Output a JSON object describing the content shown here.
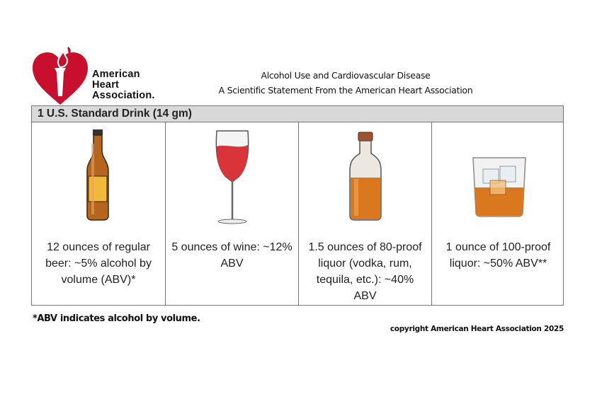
{
  "logo": {
    "lines": [
      "American",
      "Heart",
      "Association."
    ]
  },
  "header": {
    "title": "Alcohol Use and Cardiovascular Disease",
    "subtitle": "A Scientific Statement From the American Heart Association"
  },
  "table": {
    "heading": "1 U.S. Standard Drink (14 gm)",
    "cells": [
      "12 ounces of regular beer: ~5% alcohol by volume (ABV)*",
      "5 ounces of wine: ~12% ABV",
      "1.5 ounces of 80-proof liquor (vodka, rum, tequila, etc.): ~40% ABV",
      "1 ounce of 100-proof liquor: ~50% ABV**"
    ]
  },
  "footnote": "*ABV indicates alcohol by volume.",
  "copyright": "copyright American Heart Association 2025"
}
